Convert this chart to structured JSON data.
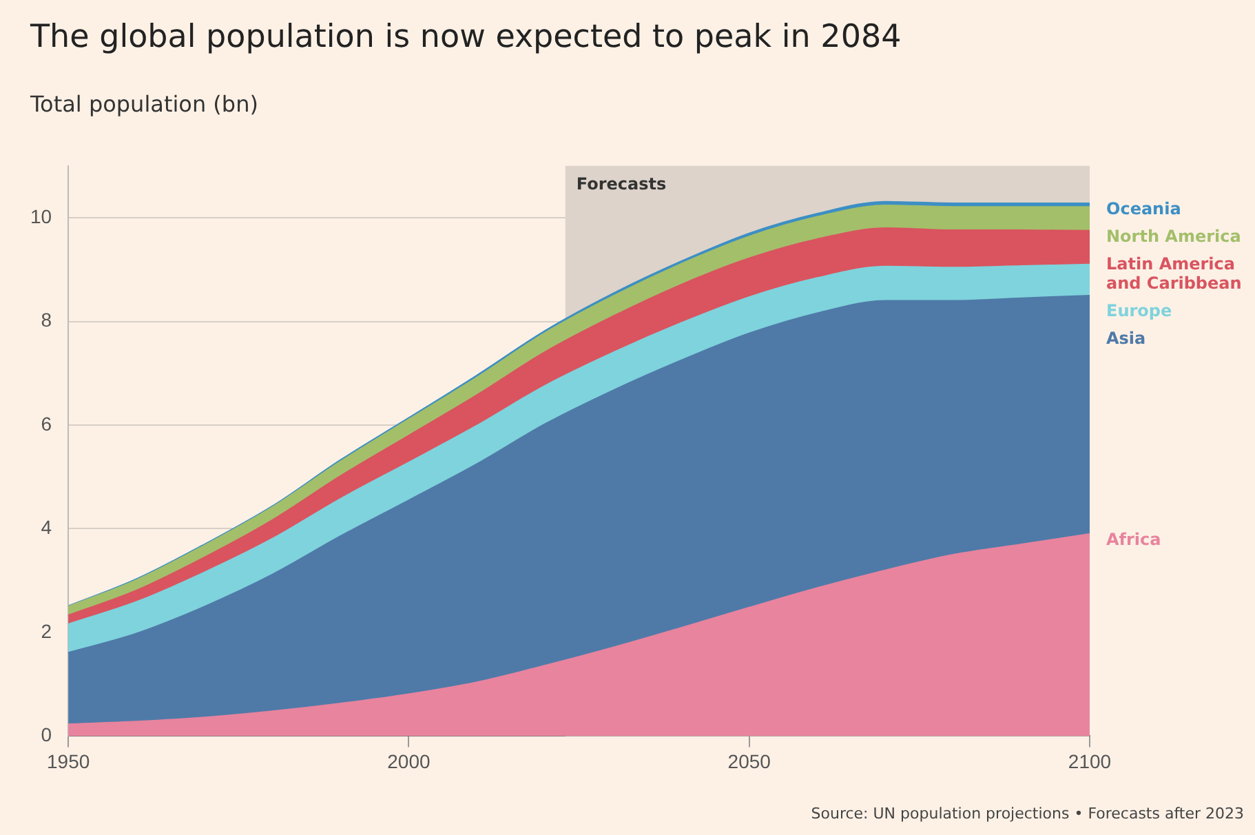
{
  "chart_data": {
    "type": "area",
    "title": "The global population is now expected to peak in 2084",
    "ylabel": "Total population (bn)",
    "stacked": true,
    "grid": "y",
    "x": [
      1950,
      1960,
      1970,
      1980,
      1990,
      2000,
      2010,
      2020,
      2030,
      2040,
      2050,
      2060,
      2070,
      2080,
      2090,
      2100
    ],
    "xlim": [
      1950,
      2100
    ],
    "xticks": [
      1950,
      2000,
      2050,
      2100
    ],
    "ylim": [
      0,
      11
    ],
    "yticks": [
      0,
      2,
      4,
      6,
      8,
      10
    ],
    "series": [
      {
        "name": "Africa",
        "color": "#e8849e",
        "values": [
          0.23,
          0.28,
          0.36,
          0.48,
          0.63,
          0.81,
          1.04,
          1.36,
          1.71,
          2.09,
          2.48,
          2.86,
          3.2,
          3.5,
          3.7,
          3.9
        ]
      },
      {
        "name": "Asia",
        "color": "#4f7aa8",
        "values": [
          1.38,
          1.7,
          2.14,
          2.64,
          3.23,
          3.74,
          4.21,
          4.66,
          4.96,
          5.16,
          5.29,
          5.3,
          5.2,
          4.9,
          4.75,
          4.6
        ]
      },
      {
        "name": "Europe",
        "color": "#7fd3dc",
        "values": [
          0.55,
          0.61,
          0.66,
          0.69,
          0.72,
          0.73,
          0.74,
          0.74,
          0.73,
          0.72,
          0.7,
          0.68,
          0.66,
          0.64,
          0.62,
          0.6
        ]
      },
      {
        "name": "Latin America and Caribbean",
        "color": "#d9545f",
        "values": [
          0.17,
          0.22,
          0.29,
          0.36,
          0.44,
          0.52,
          0.59,
          0.65,
          0.7,
          0.74,
          0.75,
          0.75,
          0.74,
          0.72,
          0.69,
          0.65
        ]
      },
      {
        "name": "North America",
        "color": "#a3bf6a",
        "values": [
          0.17,
          0.2,
          0.23,
          0.25,
          0.28,
          0.31,
          0.34,
          0.37,
          0.39,
          0.4,
          0.42,
          0.43,
          0.44,
          0.45,
          0.45,
          0.46
        ]
      },
      {
        "name": "Oceania",
        "color": "#3d8fc4",
        "values": [
          0.01,
          0.02,
          0.02,
          0.02,
          0.03,
          0.03,
          0.04,
          0.04,
          0.05,
          0.05,
          0.06,
          0.06,
          0.07,
          0.07,
          0.07,
          0.07
        ]
      }
    ],
    "bands": [
      {
        "axis": "x",
        "from": 2023,
        "to": 2100,
        "label": "Forecasts",
        "color": "#ddd3ca"
      }
    ],
    "annotations": [
      "Source: UN population projections • Forecasts after 2023"
    ]
  }
}
